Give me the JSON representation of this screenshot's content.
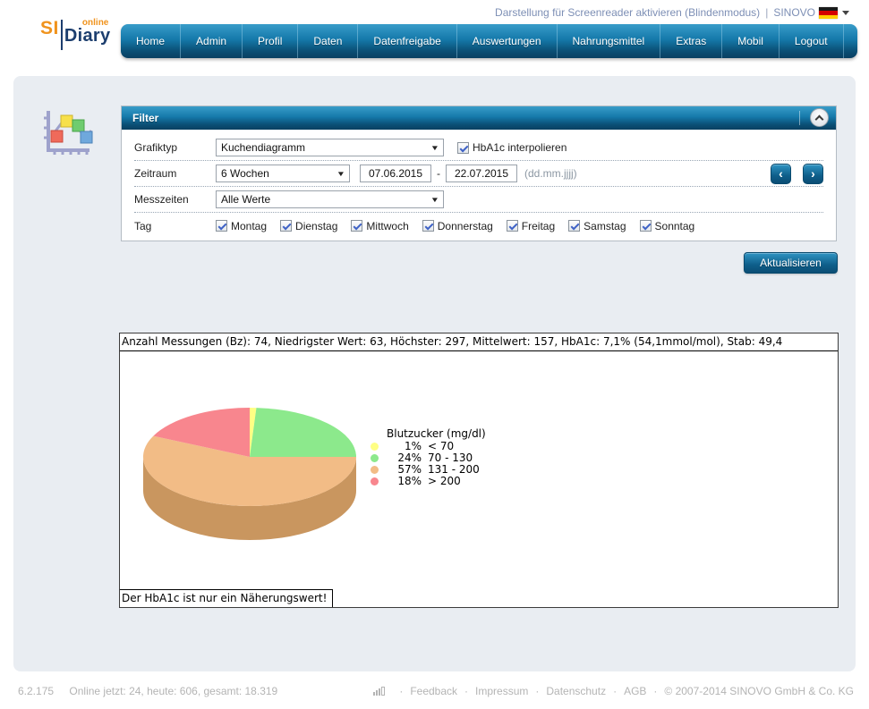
{
  "header": {
    "screenreader_link": "Darstellung für Screenreader aktivieren (Blindenmodus)",
    "separator": "|",
    "brand_link": "SINOVO",
    "logo": {
      "si": "SI",
      "online": "online",
      "diary": "Diary"
    }
  },
  "nav": {
    "items": [
      {
        "label": "Home"
      },
      {
        "label": "Admin"
      },
      {
        "label": "Profil"
      },
      {
        "label": "Daten"
      },
      {
        "label": "Datenfreigabe"
      },
      {
        "label": "Auswertungen"
      },
      {
        "label": "Nahrungsmittel"
      },
      {
        "label": "Extras"
      },
      {
        "label": "Mobil"
      },
      {
        "label": "Logout"
      }
    ]
  },
  "filter": {
    "title": "Filter",
    "grafiktyp": {
      "label": "Grafiktyp",
      "value": "Kuchendiagramm"
    },
    "hba1c": {
      "label": "HbA1c interpolieren",
      "checked": true
    },
    "zeitraum": {
      "label": "Zeitraum",
      "value": "6 Wochen",
      "date_from": "07.06.2015",
      "date_sep": "-",
      "date_to": "22.07.2015",
      "format_hint": "(dd.mm.jjjj)"
    },
    "messzeiten": {
      "label": "Messzeiten",
      "value": "Alle Werte"
    },
    "tag": {
      "label": "Tag",
      "days": [
        {
          "label": "Montag",
          "checked": true
        },
        {
          "label": "Dienstag",
          "checked": true
        },
        {
          "label": "Mittwoch",
          "checked": true
        },
        {
          "label": "Donnerstag",
          "checked": true
        },
        {
          "label": "Freitag",
          "checked": true
        },
        {
          "label": "Samstag",
          "checked": true
        },
        {
          "label": "Sonntag",
          "checked": true
        }
      ]
    }
  },
  "icons": {
    "prev": "‹",
    "next": "›",
    "dropdown": "▼"
  },
  "actions": {
    "refresh_label": "Aktualisieren"
  },
  "chart_data": {
    "type": "pie",
    "style": "3d-pie",
    "title": "Blutzucker (mg/dl)",
    "values": [
      1,
      24,
      57,
      18
    ],
    "unit": "%",
    "percent_labels": [
      "1%",
      "24%",
      "57%",
      "18%"
    ],
    "labels": [
      "< 70",
      "70 - 130",
      "131 - 200",
      "> 200"
    ],
    "colors": [
      "#FFFF84",
      "#8CE98C",
      "#F2BC86",
      "#F8868E"
    ],
    "depth_color": "#C9965F",
    "start_angle_deg": -90,
    "direction": "clockwise",
    "legend_position": "right",
    "stats_line": "Anzahl Messungen (Bz): 74, Niedrigster Wert: 63, Höchster: 297, Mittelwert: 157, HbA1c: 7,1% (54,1mmol/mol), Stab: 49,4",
    "footnote": "Der HbA1c ist nur ein Näherungswert!"
  },
  "footer": {
    "version": "6.2.175",
    "online_stats": "Online jetzt: 24, heute: 606, gesamt: 18.319",
    "separator": "·",
    "links": [
      {
        "label": "Feedback"
      },
      {
        "label": "Impressum"
      },
      {
        "label": "Datenschutz"
      },
      {
        "label": "AGB"
      }
    ],
    "copyright": "© 2007-2014 SINOVO GmbH & Co. KG"
  }
}
